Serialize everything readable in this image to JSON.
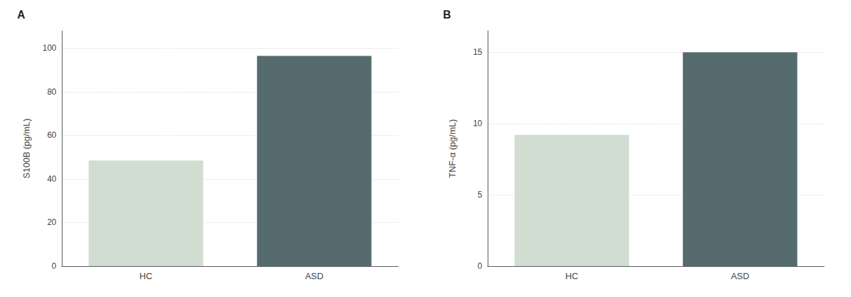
{
  "chart_data": [
    {
      "type": "bar",
      "title": "A",
      "categories": [
        "HC",
        "ASD"
      ],
      "values": [
        48.5,
        96.5
      ],
      "colors": [
        "#d0ddd0",
        "#556b6e"
      ],
      "ylabel": "S100B (pg/mL)",
      "ylim": [
        0,
        108
      ],
      "yticks": [
        0,
        20,
        40,
        60,
        80,
        100
      ],
      "grid": true
    },
    {
      "type": "bar",
      "title": "B",
      "categories": [
        "HC",
        "ASD"
      ],
      "values": [
        9.2,
        15.0
      ],
      "colors": [
        "#d0ddd0",
        "#556b6e"
      ],
      "ylabel": "TNF-α (pg/mL)",
      "ylim": [
        0,
        16.5
      ],
      "yticks": [
        0,
        5,
        10,
        15
      ],
      "grid": true
    }
  ]
}
